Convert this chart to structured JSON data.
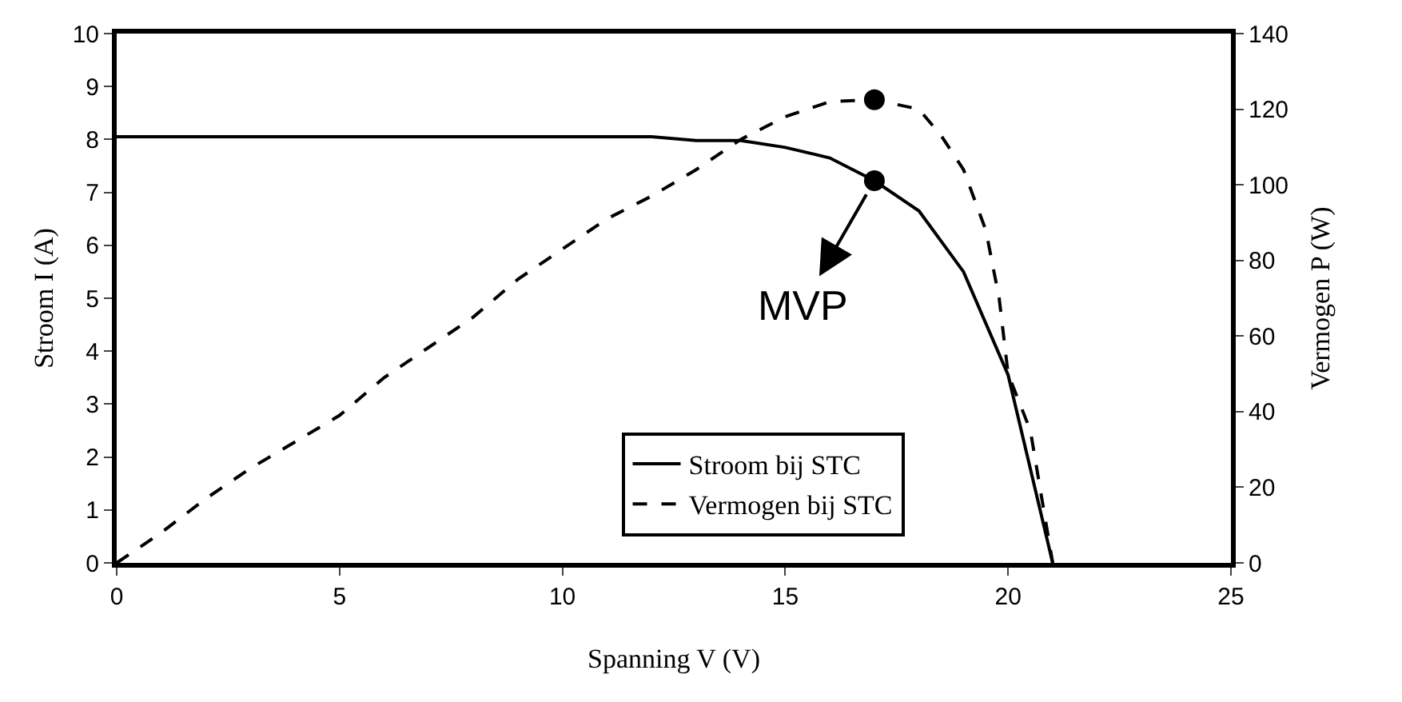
{
  "chart_data": {
    "type": "line",
    "xlabel": "Spanning V (V)",
    "ylabel": "Stroom I (A)",
    "y2label": "Vermogen P (W)",
    "xlim": [
      0,
      25
    ],
    "xticks": [
      0,
      5,
      10,
      15,
      20,
      25
    ],
    "ylim": [
      0,
      10
    ],
    "yticks": [
      0,
      1,
      2,
      3,
      4,
      5,
      6,
      7,
      8,
      9,
      10
    ],
    "y2lim": [
      0,
      140
    ],
    "y2ticks": [
      0,
      20,
      40,
      60,
      80,
      100,
      120,
      140
    ],
    "grid": false,
    "legend": "bottom",
    "series": [
      {
        "name": "Stroom bij STC",
        "color": "#000000",
        "line_style": "solid",
        "marker": "none",
        "x": [
          0,
          12,
          13,
          14,
          15,
          16,
          17,
          18,
          19,
          20,
          21
        ],
        "values": [
          8.05,
          8.05,
          7.98,
          7.98,
          7.85,
          7.65,
          7.22,
          6.65,
          5.5,
          3.55,
          0
        ]
      },
      {
        "name": "Vermogen bij STC",
        "color": "#000000",
        "line_style": "dashed",
        "marker": "none",
        "axis": "y2",
        "x": [
          0,
          1,
          2,
          3,
          4,
          5,
          6,
          7,
          8,
          9,
          10,
          11,
          12,
          13,
          14,
          15,
          16,
          17,
          18,
          18.5,
          19,
          19.5,
          19.8,
          20,
          20.5,
          21
        ],
        "values": [
          0,
          8,
          17,
          25,
          32,
          39,
          49,
          57,
          65,
          75,
          83,
          91,
          97,
          104,
          112,
          118,
          122,
          122.5,
          120,
          113,
          104,
          88,
          70,
          50,
          35,
          0
        ]
      },
      {
        "type": "scatter",
        "color": "#000000",
        "marker": "circle",
        "x": [
          17
        ],
        "values": [
          7.22
        ]
      },
      {
        "type": "scatter",
        "color": "#000000",
        "marker": "circle",
        "axis": "y2",
        "x": [
          17
        ],
        "values": [
          122.5
        ]
      }
    ],
    "annotations": [
      {
        "text": "MVP",
        "x": 17,
        "y": 7.22
      }
    ]
  }
}
